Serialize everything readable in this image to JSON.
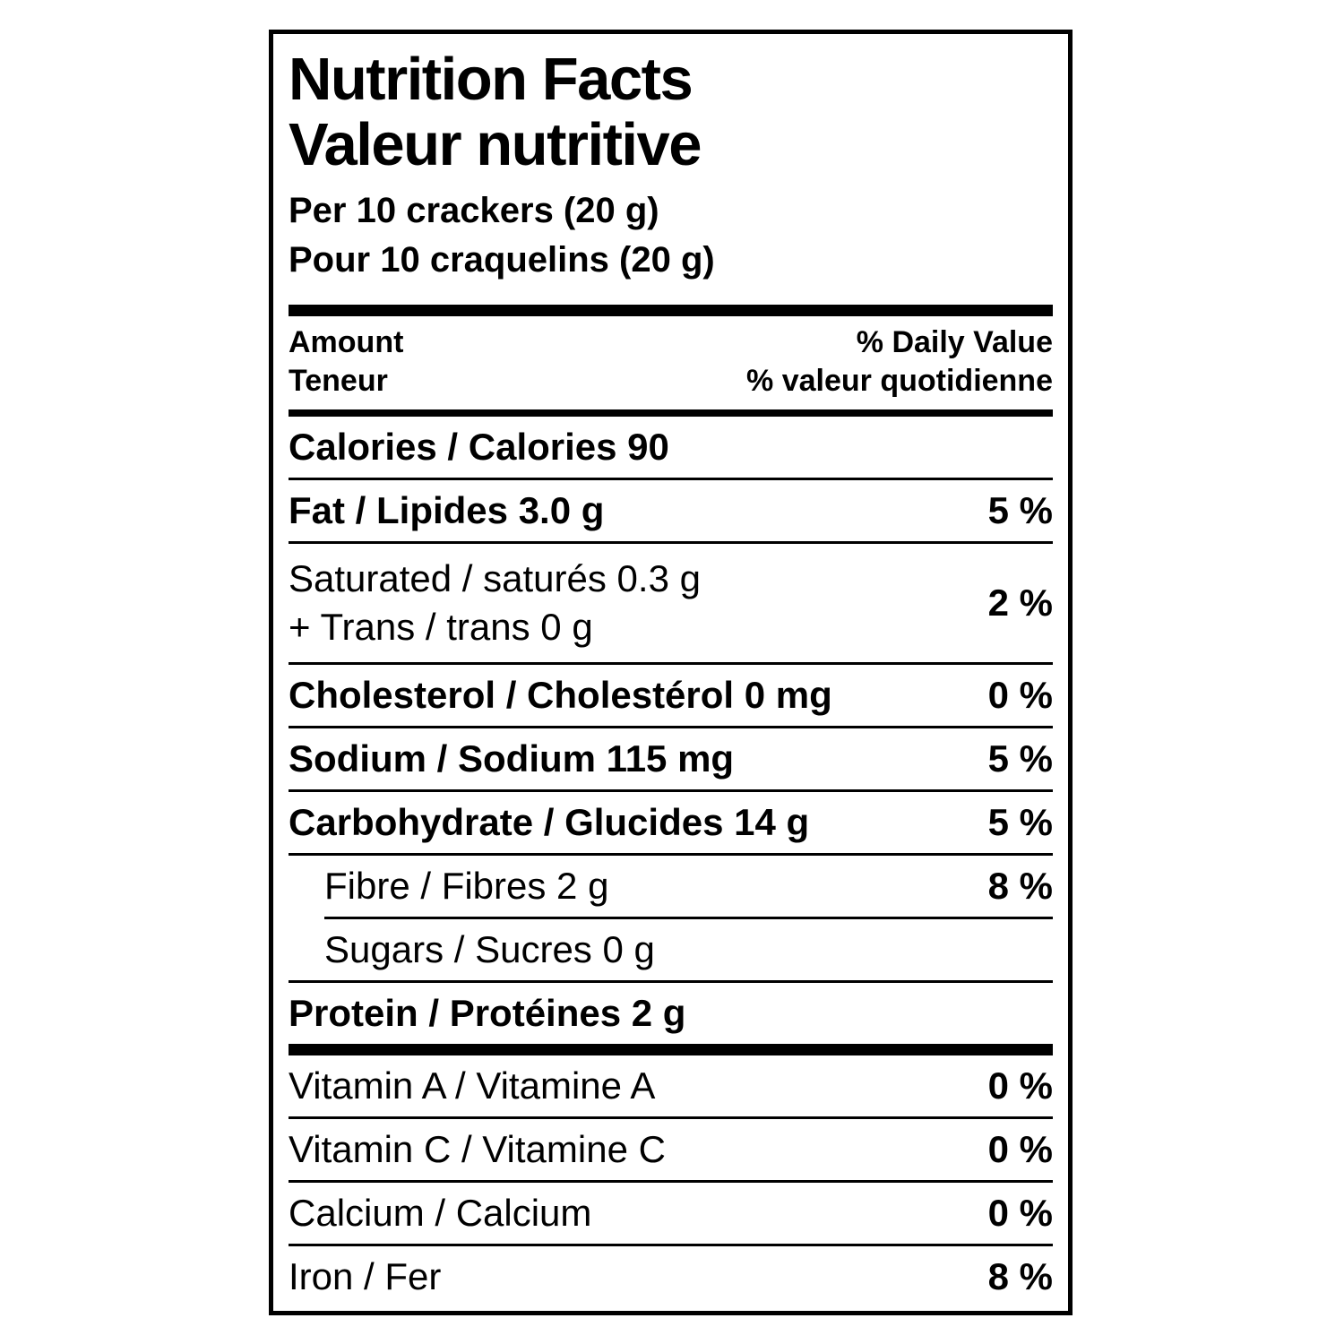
{
  "label": {
    "title_en": "Nutrition Facts",
    "title_fr": "Valeur nutritive",
    "serving_en": "Per 10 crackers (20 g)",
    "serving_fr": "Pour 10 craquelins (20 g)",
    "header": {
      "amount_en": "Amount",
      "amount_fr": "Teneur",
      "dv_en": "% Daily Value",
      "dv_fr": "% valeur quotidienne"
    },
    "rows": [
      {
        "text": "Calories / Calories 90",
        "pct": ""
      },
      {
        "text": "Fat / Lipides 3.0 g",
        "pct": "5 %"
      },
      {
        "line1": "Saturated / saturés 0.3 g",
        "line2": "+ Trans / trans 0 g",
        "pct": "2 %"
      },
      {
        "text": "Cholesterol / Cholestérol 0 mg",
        "pct": "0 %"
      },
      {
        "text": "Sodium / Sodium 115 mg",
        "pct": "5 %"
      },
      {
        "text": "Carbohydrate / Glucides 14 g",
        "pct": "5 %"
      },
      {
        "text": "Fibre / Fibres 2 g",
        "pct": "8 %"
      },
      {
        "text": "Sugars / Sucres 0 g",
        "pct": ""
      },
      {
        "text": "Protein / Protéines 2 g",
        "pct": ""
      },
      {
        "text": "Vitamin A / Vitamine A",
        "pct": "0 %"
      },
      {
        "text": "Vitamin C / Vitamine C",
        "pct": "0 %"
      },
      {
        "text": "Calcium / Calcium",
        "pct": "0 %"
      },
      {
        "text": "Iron / Fer",
        "pct": "8 %"
      }
    ],
    "colors": {
      "ink": "#000000",
      "background": "#ffffff"
    }
  }
}
